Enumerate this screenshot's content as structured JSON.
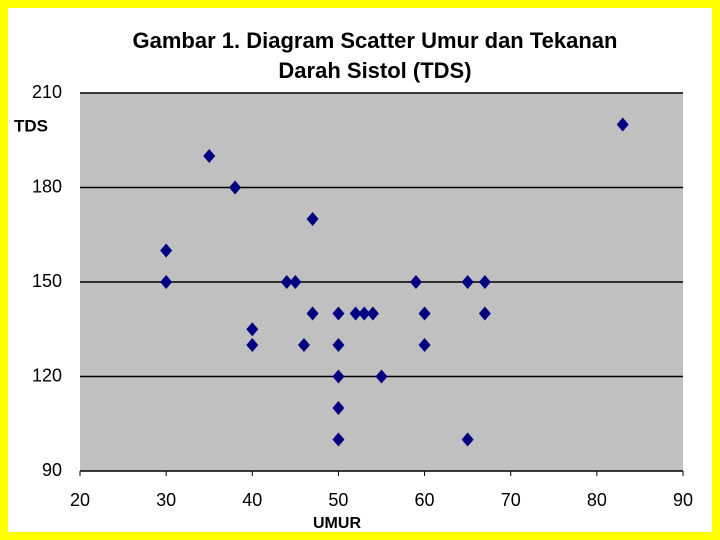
{
  "chart_data": {
    "type": "scatter",
    "title": [
      "Gambar 1. Diagram Scatter Umur dan Tekanan",
      "Darah Sistol (TDS)"
    ],
    "x_label": "UMUR",
    "y_label": "TDS",
    "x": [
      30,
      30,
      35,
      38,
      40,
      40,
      44,
      45,
      46,
      47,
      47,
      50,
      50,
      50,
      50,
      50,
      52,
      53,
      54,
      55,
      59,
      60,
      60,
      65,
      65,
      67,
      67,
      83
    ],
    "values": [
      160,
      150,
      190,
      180,
      135,
      130,
      150,
      150,
      130,
      170,
      140,
      140,
      130,
      120,
      110,
      100,
      140,
      140,
      140,
      120,
      150,
      140,
      130,
      150,
      100,
      150,
      140,
      200
    ],
    "color": "#000080",
    "xlim": [
      20,
      90
    ],
    "xticks": [
      20,
      30,
      40,
      50,
      60,
      70,
      80,
      90
    ],
    "ylim": [
      90,
      210
    ],
    "yticks": [
      90,
      120,
      150,
      180,
      210
    ],
    "grid": true
  }
}
